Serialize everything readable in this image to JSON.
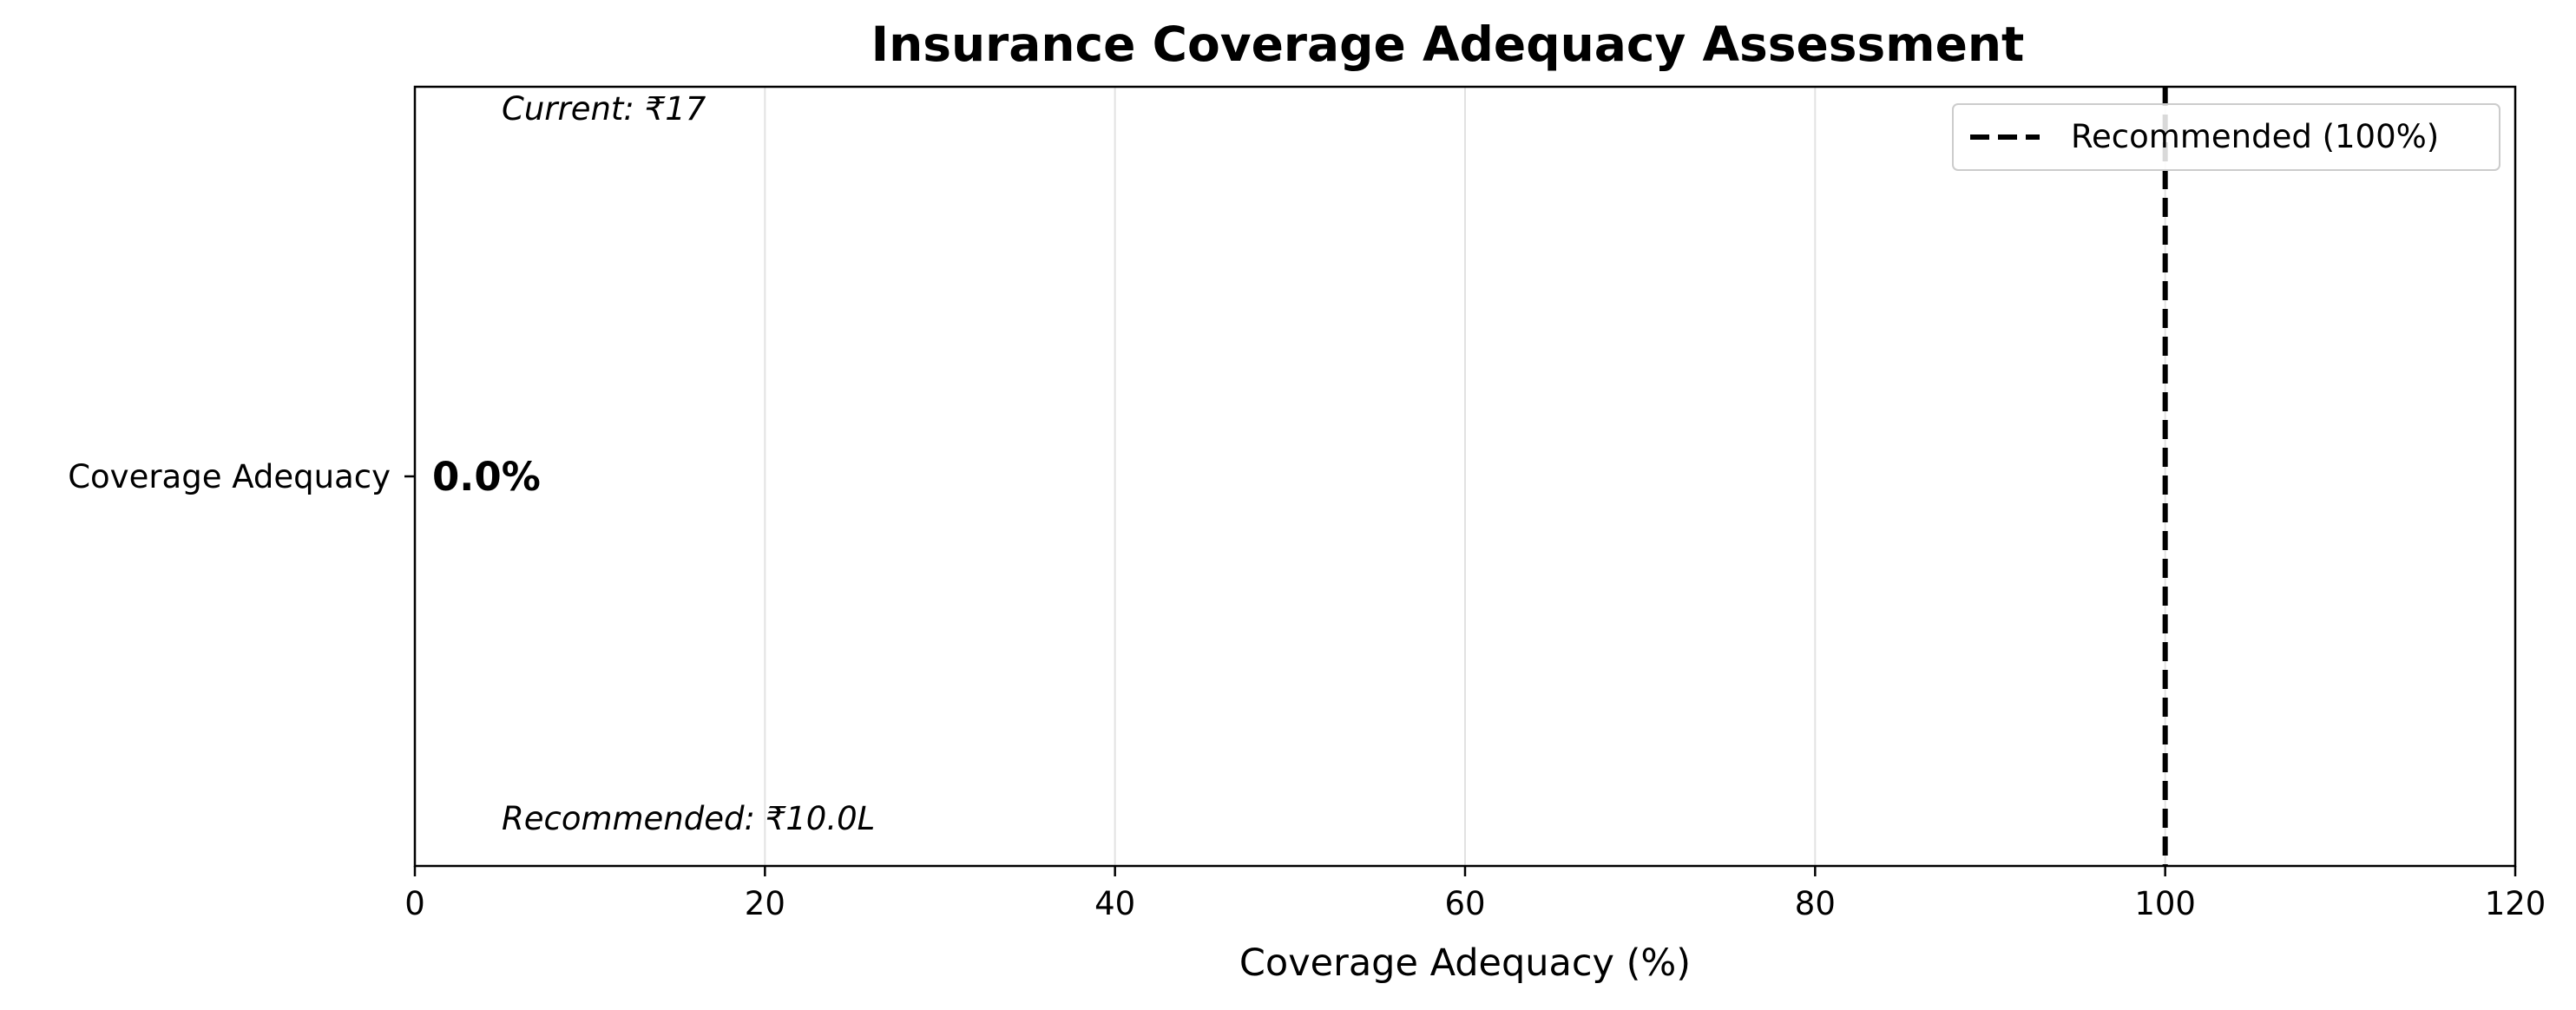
{
  "chart_data": {
    "type": "bar",
    "orientation": "horizontal",
    "title": "Insurance Coverage Adequacy Assessment",
    "xlabel": "Coverage Adequacy (%)",
    "ylabel": "",
    "xlim": [
      0,
      120
    ],
    "xticks": [
      0,
      20,
      40,
      60,
      80,
      100,
      120
    ],
    "categories": [
      "Coverage Adequacy"
    ],
    "values": [
      0.0
    ],
    "value_labels": [
      "0.0%"
    ],
    "reference_line": {
      "x": 100,
      "style": "dashed",
      "color": "#000000",
      "label": "Recommended (100%)"
    },
    "annotations": {
      "current": "Current: ₹17",
      "recommended": "Recommended: ₹10.0L"
    },
    "grid": {
      "x": true,
      "y": false
    },
    "legend_position": "top-right"
  }
}
